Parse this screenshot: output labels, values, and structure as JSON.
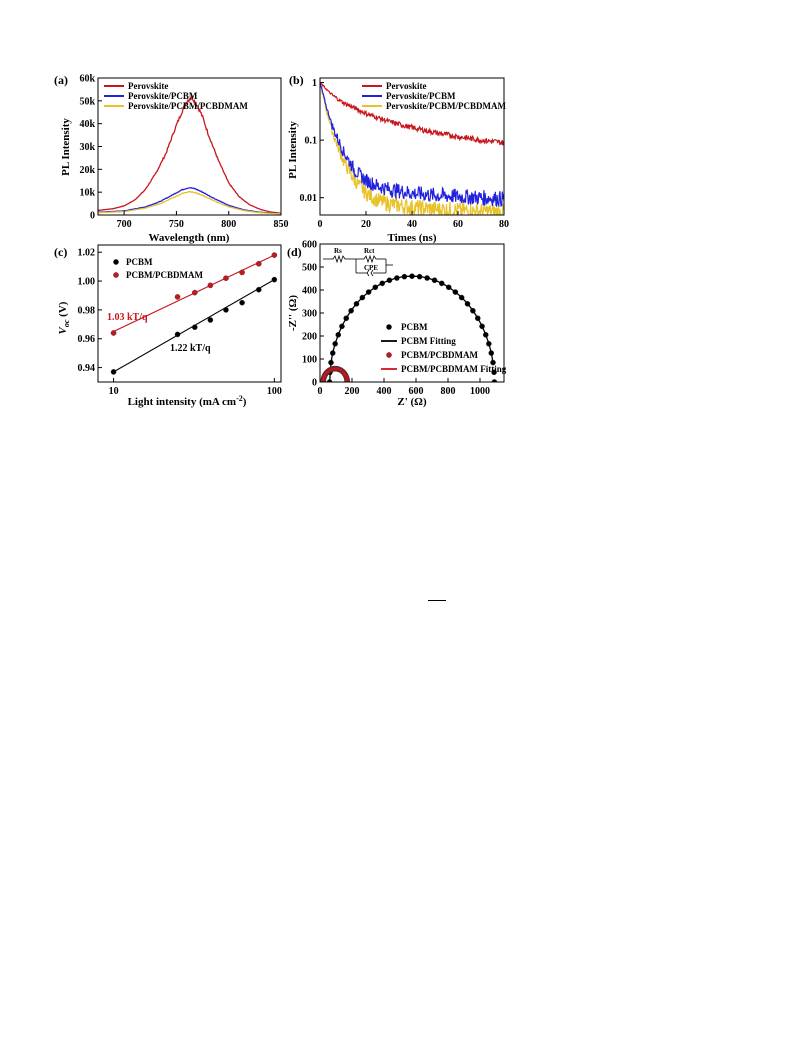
{
  "colors": {
    "perovskite": "#c8161d",
    "pcbm": "#2222dd",
    "pcbdmam": "#e8c228",
    "black": "#000000",
    "red": "#c8161d"
  },
  "chart_data": [
    {
      "panel": "(a)",
      "type": "line",
      "xlabel": "Wavelength (nm)",
      "ylabel": "PL Intensity",
      "xlim": [
        675,
        850
      ],
      "ylim": [
        0,
        60000
      ],
      "xticks": [
        700,
        750,
        800,
        850
      ],
      "xtick_labels": [
        "700",
        "750",
        "800",
        "850"
      ],
      "yticks": [
        0,
        10000,
        20000,
        30000,
        40000,
        50000,
        60000
      ],
      "ytick_labels": [
        "0",
        "10k",
        "20k",
        "30k",
        "40k",
        "50k",
        "60k"
      ],
      "legend_position": "top-left",
      "series": [
        {
          "name": "Perovskite",
          "color_key": "perovskite",
          "x": [
            675,
            690,
            700,
            710,
            720,
            730,
            740,
            748,
            755,
            760,
            765,
            770,
            775,
            780,
            790,
            800,
            810,
            820,
            830,
            840,
            850
          ],
          "y": [
            2000,
            2800,
            4000,
            6500,
            11000,
            18000,
            27000,
            37000,
            45000,
            50000,
            51500,
            48000,
            43000,
            36000,
            24000,
            14000,
            8000,
            4500,
            2500,
            1300,
            800
          ]
        },
        {
          "name": "Perovskite/PCBM",
          "color_key": "pcbm",
          "x": [
            675,
            700,
            720,
            735,
            745,
            755,
            762,
            768,
            775,
            785,
            800,
            815,
            830,
            850
          ],
          "y": [
            1200,
            1800,
            3500,
            6000,
            8500,
            11000,
            12000,
            11500,
            10000,
            7500,
            4200,
            2200,
            1200,
            600
          ]
        },
        {
          "name": "Perovskite/PCBM/PCBDMAM",
          "color_key": "pcbdmam",
          "x": [
            675,
            700,
            720,
            735,
            745,
            755,
            762,
            768,
            775,
            785,
            800,
            815,
            830,
            850
          ],
          "y": [
            1000,
            1500,
            3000,
            5000,
            7200,
            9300,
            10300,
            9800,
            8600,
            6400,
            3600,
            1900,
            1000,
            500
          ]
        }
      ]
    },
    {
      "panel": "(b)",
      "type": "line",
      "xlabel": "Times (ns)",
      "ylabel": "PL Intensity",
      "yscale": "log",
      "xlim": [
        0,
        80
      ],
      "ylim": [
        0.005,
        1.2
      ],
      "xticks": [
        0,
        20,
        40,
        60,
        80
      ],
      "xtick_labels": [
        "0",
        "20",
        "40",
        "60",
        "80"
      ],
      "yticks": [
        1,
        0.1,
        0.01
      ],
      "ytick_labels": [
        "1",
        "0.1",
        "0.01"
      ],
      "legend_position": "top-right",
      "series": [
        {
          "name": "Pervoskite",
          "color_key": "perovskite",
          "x": [
            0,
            5,
            10,
            20,
            30,
            40,
            50,
            60,
            70,
            80
          ],
          "y": [
            1.0,
            0.62,
            0.45,
            0.29,
            0.21,
            0.165,
            0.135,
            0.115,
            0.1,
            0.09
          ]
        },
        {
          "name": "Pervoskite/PCBM",
          "color_key": "pcbm",
          "x": [
            0,
            3,
            6,
            10,
            15,
            20,
            25,
            30,
            40,
            50,
            60,
            70,
            80
          ],
          "y": [
            1.0,
            0.35,
            0.15,
            0.065,
            0.03,
            0.02,
            0.016,
            0.014,
            0.012,
            0.011,
            0.0105,
            0.01,
            0.0095
          ]
        },
        {
          "name": "Pervoskite/PCBM/PCBDMAM",
          "color_key": "pcbdmam",
          "x": [
            0,
            3,
            6,
            10,
            15,
            20,
            25,
            30,
            40,
            50,
            60,
            70,
            80
          ],
          "y": [
            1.0,
            0.3,
            0.12,
            0.045,
            0.02,
            0.012,
            0.009,
            0.0078,
            0.0068,
            0.0063,
            0.006,
            0.0058,
            0.0056
          ]
        }
      ]
    },
    {
      "panel": "(c)",
      "type": "scatter",
      "xlabel": "Light intensity (mA cm",
      "xlabel_sup": "-2",
      "xlabel_end": ")",
      "ylabel": "V",
      "ylabel_sub": "oc",
      "ylabel_end": " (V)",
      "xscale": "log",
      "xlim": [
        8,
        110
      ],
      "ylim": [
        0.93,
        1.025
      ],
      "xticks": [
        10,
        100
      ],
      "xtick_labels": [
        "10",
        "100"
      ],
      "yticks": [
        0.94,
        0.96,
        0.98,
        1.0,
        1.02
      ],
      "ytick_labels": [
        "0.94",
        "0.96",
        "0.98",
        "1.00",
        "1.02"
      ],
      "legend_position": "top-left",
      "annotations": [
        {
          "text": "1.03 kT/q",
          "color_key": "red"
        },
        {
          "text": "1.22 kT/q",
          "color_key": "black"
        }
      ],
      "series": [
        {
          "name": "PCBM",
          "color_key": "black",
          "x": [
            10,
            25,
            32,
            40,
            50,
            63,
            80,
            100
          ],
          "y": [
            0.937,
            0.963,
            0.968,
            0.973,
            0.98,
            0.985,
            0.994,
            1.001
          ],
          "fit": [
            [
              10,
              0.937
            ],
            [
              100,
              1.001
            ]
          ]
        },
        {
          "name": "PCBM/PCBDMAM",
          "color_key": "red",
          "x": [
            10,
            25,
            32,
            40,
            50,
            63,
            80,
            100
          ],
          "y": [
            0.964,
            0.989,
            0.992,
            0.997,
            1.002,
            1.006,
            1.012,
            1.018
          ],
          "fit": [
            [
              10,
              0.965
            ],
            [
              100,
              1.018
            ]
          ]
        }
      ]
    },
    {
      "panel": "(d)",
      "type": "scatter",
      "xlabel": "Z' (Ω)",
      "ylabel": "-Z'' (Ω)",
      "xlim": [
        0,
        1150
      ],
      "ylim": [
        0,
        600
      ],
      "xticks": [
        0,
        200,
        400,
        600,
        800,
        1000
      ],
      "xtick_labels": [
        "0",
        "200",
        "400",
        "600",
        "800",
        "1000"
      ],
      "yticks": [
        0,
        100,
        200,
        300,
        400,
        500,
        600
      ],
      "ytick_labels": [
        "0",
        "100",
        "200",
        "300",
        "400",
        "500",
        "600"
      ],
      "legend_position": "center-right",
      "circuit_labels": {
        "rs": "Rs",
        "rct": "Rct",
        "cpe": "CPE"
      },
      "series": [
        {
          "name": "PCBM",
          "color_key": "black",
          "kind": "points",
          "arc": {
            "center": 575,
            "radius": 515,
            "height": 460,
            "start": 60,
            "end": 1090
          }
        },
        {
          "name": "PCBM Fitting",
          "color_key": "black",
          "kind": "line",
          "arc": {
            "center": 575,
            "radius": 515,
            "height": 460,
            "start": 60,
            "end": 1090
          }
        },
        {
          "name": "PCBM/PCBDMAM",
          "color_key": "red",
          "kind": "points",
          "arc": {
            "center": 95,
            "radius": 75,
            "height": 58,
            "start": 20,
            "end": 170
          }
        },
        {
          "name": "PCBM/PCBDMAM Fitting",
          "color_key": "red",
          "kind": "line",
          "arc": {
            "center": 95,
            "radius": 75,
            "height": 58,
            "start": 20,
            "end": 170
          }
        }
      ]
    }
  ]
}
